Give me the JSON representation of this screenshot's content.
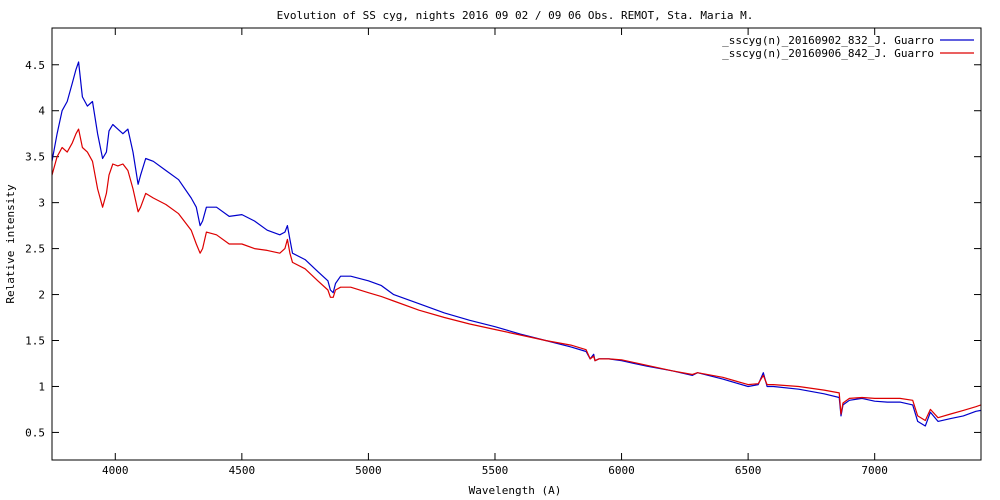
{
  "chart_data": {
    "type": "line",
    "title": "Evolution of SS cyg,  nights 2016 09 02 / 09 06 Obs. REMOT, Sta. Maria M.",
    "xlabel": "Wavelength (A)",
    "ylabel": "Relative intensity",
    "xlim": [
      3750,
      7420
    ],
    "ylim": [
      0.2,
      4.9
    ],
    "xticks": [
      4000,
      4500,
      5000,
      5500,
      6000,
      6500,
      7000
    ],
    "xtick_labels": [
      "4000",
      "4500",
      "5000",
      "5500",
      "6000",
      "6500",
      "7000"
    ],
    "yticks": [
      0.5,
      1,
      1.5,
      2,
      2.5,
      3,
      3.5,
      4,
      4.5
    ],
    "ytick_labels": [
      "0.5",
      "1",
      "1.5",
      "2",
      "2.5",
      "3",
      "3.5",
      "4",
      "4.5"
    ],
    "grid": false,
    "legend_position": "top-right",
    "series": [
      {
        "name": "_sscyg(n)_20160902_832_J. Guarro",
        "color": "#0000cc",
        "x": [
          3750,
          3770,
          3790,
          3810,
          3830,
          3845,
          3855,
          3870,
          3890,
          3910,
          3930,
          3950,
          3965,
          3975,
          3990,
          4010,
          4030,
          4050,
          4070,
          4090,
          4100,
          4120,
          4150,
          4200,
          4250,
          4300,
          4320,
          4335,
          4345,
          4360,
          4400,
          4450,
          4500,
          4550,
          4600,
          4650,
          4670,
          4680,
          4690,
          4700,
          4750,
          4800,
          4840,
          4850,
          4861,
          4870,
          4890,
          4930,
          5000,
          5050,
          5100,
          5200,
          5300,
          5400,
          5500,
          5600,
          5700,
          5800,
          5860,
          5876,
          5890,
          5895,
          5910,
          5950,
          6000,
          6100,
          6200,
          6280,
          6300,
          6400,
          6450,
          6500,
          6540,
          6560,
          6575,
          6600,
          6700,
          6800,
          6860,
          6867,
          6875,
          6900,
          6950,
          7000,
          7050,
          7100,
          7150,
          7170,
          7200,
          7220,
          7250,
          7300,
          7350,
          7400,
          7420
        ],
        "y": [
          3.45,
          3.75,
          4.0,
          4.1,
          4.3,
          4.45,
          4.53,
          4.15,
          4.05,
          4.1,
          3.75,
          3.48,
          3.55,
          3.78,
          3.85,
          3.8,
          3.75,
          3.8,
          3.55,
          3.2,
          3.3,
          3.48,
          3.45,
          3.35,
          3.25,
          3.05,
          2.95,
          2.75,
          2.8,
          2.95,
          2.95,
          2.85,
          2.87,
          2.8,
          2.7,
          2.65,
          2.68,
          2.75,
          2.6,
          2.45,
          2.38,
          2.25,
          2.15,
          2.05,
          2.02,
          2.12,
          2.2,
          2.2,
          2.15,
          2.1,
          2.0,
          1.9,
          1.8,
          1.72,
          1.65,
          1.57,
          1.5,
          1.43,
          1.38,
          1.3,
          1.35,
          1.28,
          1.3,
          1.3,
          1.28,
          1.22,
          1.17,
          1.12,
          1.15,
          1.08,
          1.04,
          1.0,
          1.02,
          1.15,
          1.0,
          1.0,
          0.97,
          0.92,
          0.88,
          0.68,
          0.8,
          0.85,
          0.87,
          0.84,
          0.83,
          0.83,
          0.8,
          0.62,
          0.57,
          0.72,
          0.62,
          0.65,
          0.68,
          0.73,
          0.74
        ]
      },
      {
        "name": "_sscyg(n)_20160906_842_J. Guarro",
        "color": "#dd0000",
        "x": [
          3750,
          3770,
          3790,
          3810,
          3830,
          3845,
          3855,
          3870,
          3890,
          3910,
          3930,
          3950,
          3965,
          3975,
          3990,
          4010,
          4030,
          4050,
          4070,
          4090,
          4100,
          4120,
          4150,
          4200,
          4250,
          4300,
          4320,
          4335,
          4345,
          4360,
          4400,
          4450,
          4500,
          4550,
          4600,
          4650,
          4670,
          4680,
          4690,
          4700,
          4750,
          4800,
          4840,
          4850,
          4861,
          4870,
          4890,
          4930,
          5000,
          5050,
          5100,
          5200,
          5300,
          5400,
          5500,
          5600,
          5700,
          5800,
          5860,
          5876,
          5890,
          5895,
          5910,
          5950,
          6000,
          6100,
          6200,
          6280,
          6300,
          6400,
          6450,
          6500,
          6540,
          6560,
          6575,
          6600,
          6700,
          6800,
          6860,
          6867,
          6875,
          6900,
          6950,
          7000,
          7050,
          7100,
          7150,
          7170,
          7200,
          7220,
          7250,
          7300,
          7350,
          7400,
          7420
        ],
        "y": [
          3.3,
          3.5,
          3.6,
          3.55,
          3.65,
          3.75,
          3.8,
          3.6,
          3.55,
          3.45,
          3.15,
          2.95,
          3.1,
          3.3,
          3.42,
          3.4,
          3.42,
          3.35,
          3.15,
          2.9,
          2.95,
          3.1,
          3.05,
          2.98,
          2.88,
          2.7,
          2.55,
          2.45,
          2.5,
          2.68,
          2.65,
          2.55,
          2.55,
          2.5,
          2.48,
          2.45,
          2.5,
          2.6,
          2.45,
          2.35,
          2.28,
          2.15,
          2.05,
          1.97,
          1.97,
          2.05,
          2.08,
          2.08,
          2.02,
          1.98,
          1.93,
          1.83,
          1.75,
          1.68,
          1.62,
          1.56,
          1.5,
          1.45,
          1.4,
          1.3,
          1.33,
          1.28,
          1.3,
          1.3,
          1.29,
          1.23,
          1.17,
          1.13,
          1.15,
          1.1,
          1.06,
          1.02,
          1.03,
          1.12,
          1.02,
          1.02,
          1.0,
          0.96,
          0.93,
          0.7,
          0.82,
          0.87,
          0.88,
          0.87,
          0.87,
          0.87,
          0.85,
          0.68,
          0.63,
          0.75,
          0.66,
          0.7,
          0.74,
          0.78,
          0.8
        ]
      }
    ]
  }
}
